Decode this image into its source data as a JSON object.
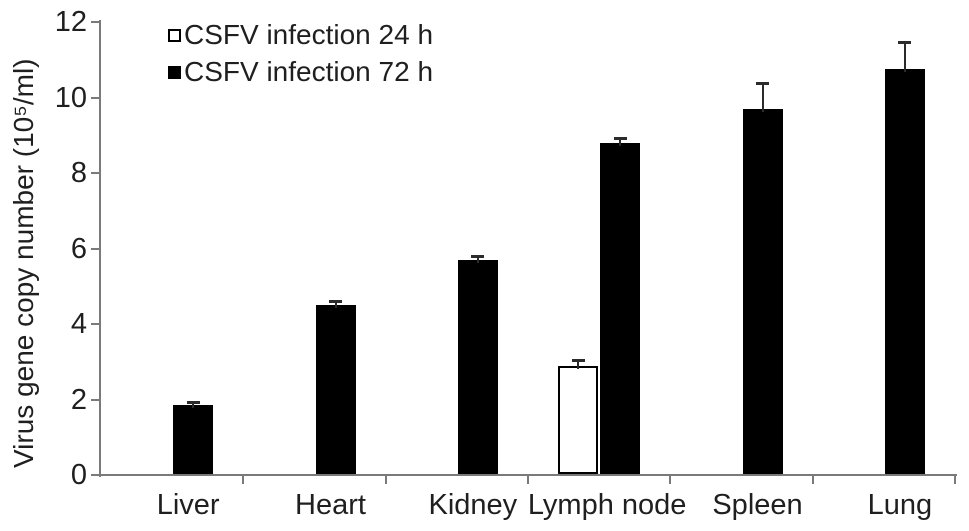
{
  "chart_data": {
    "type": "bar",
    "title": "",
    "xlabel": "",
    "ylabel": "Virus gene copy number (10⁵/ml)",
    "categories": [
      "Liver",
      "Heart",
      "Kidney",
      "Lymph node",
      "Spleen",
      "Lung"
    ],
    "series": [
      {
        "name": "CSFV infection 24 h",
        "swatch": "open-square",
        "fill": "#ffffff",
        "border": "#000000",
        "values": [
          null,
          null,
          null,
          2.9,
          null,
          null
        ],
        "errors": [
          null,
          null,
          null,
          0.12,
          null,
          null
        ]
      },
      {
        "name": "CSFV infection 72 h",
        "swatch": "filled-square",
        "fill": "#000000",
        "border": "#000000",
        "values": [
          1.85,
          4.5,
          5.7,
          8.8,
          9.7,
          10.75
        ],
        "errors": [
          0.07,
          0.07,
          0.07,
          0.1,
          0.65,
          0.7
        ]
      }
    ],
    "ylim": [
      0,
      12
    ],
    "yticks": [
      0,
      2,
      4,
      6,
      8,
      10,
      12
    ],
    "grid": false,
    "legend_position": "top-left-inside",
    "error_bars": "upper-only"
  },
  "colors": {
    "background": "#ffffff",
    "axis": "#7a7a7a",
    "text": "#1f1f1f",
    "bar_filled": "#000000",
    "bar_open": "#ffffff",
    "error_bar": "#2b2b2b"
  }
}
